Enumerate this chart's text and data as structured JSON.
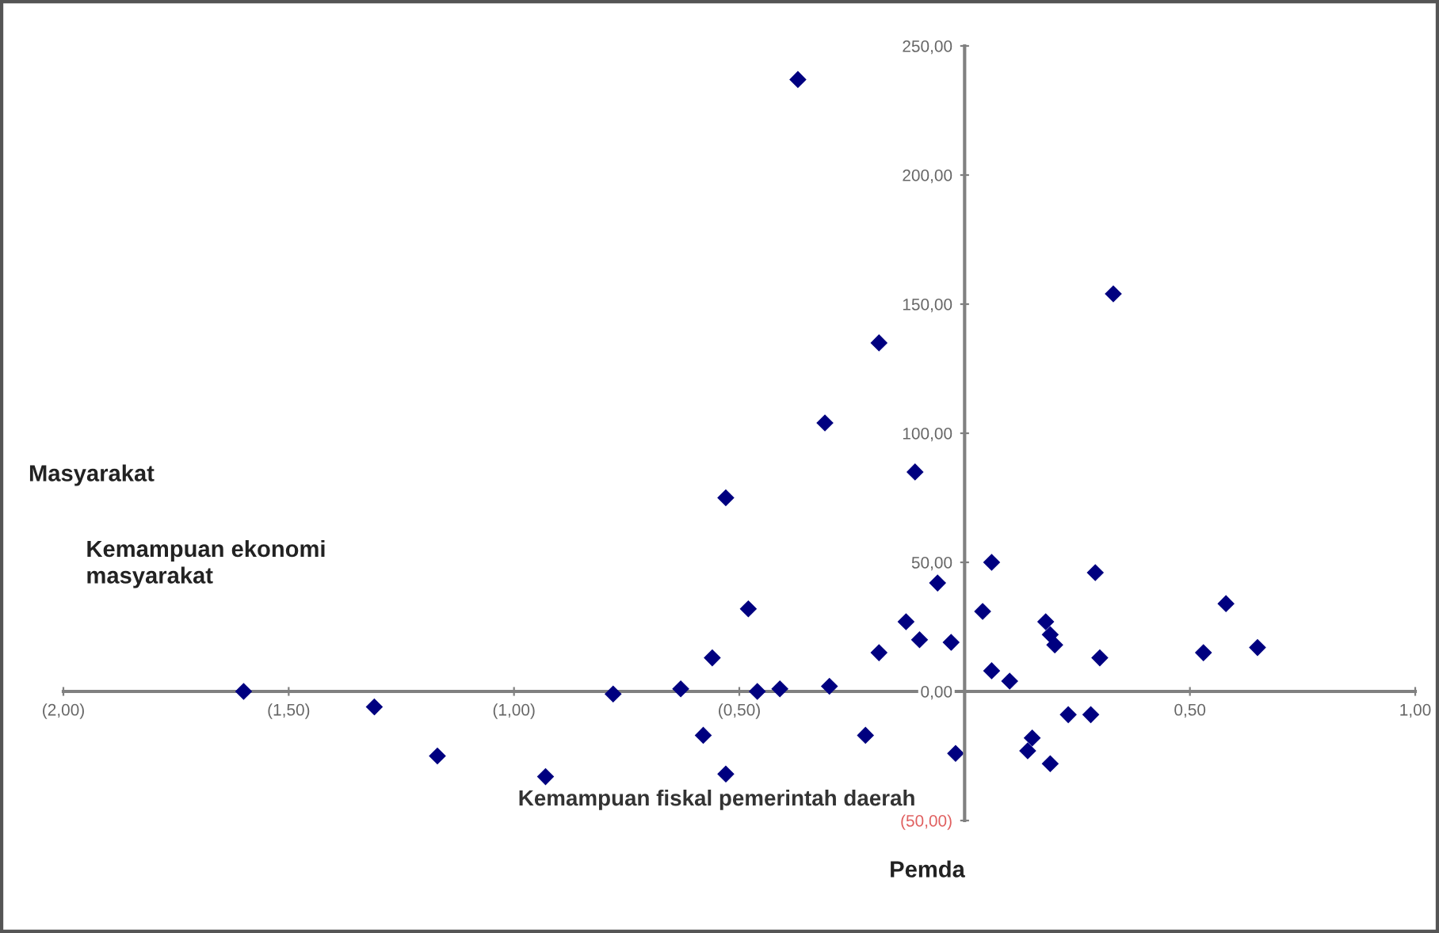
{
  "chart_data": {
    "type": "scatter",
    "xlabel": "Kemampuan fiskal pemerintah daerah",
    "ylabel": "Kemampuan ekonomi\nmasyarakat",
    "annotations": [
      "Masyarakat",
      "Pemda"
    ],
    "marker": "diamond",
    "grid": false,
    "legend": false,
    "xlim": [
      -2,
      1
    ],
    "ylim": [
      -50,
      250
    ],
    "xticks": [
      {
        "value": -2,
        "label": "(2,00)"
      },
      {
        "value": -1.5,
        "label": "(1,50)"
      },
      {
        "value": -1,
        "label": "(1,00)"
      },
      {
        "value": -0.5,
        "label": "(0,50)"
      },
      {
        "value": 0.5,
        "label": "0,50"
      },
      {
        "value": 1,
        "label": "1,00"
      }
    ],
    "yticks": [
      {
        "value": -50,
        "label": "(50,00)"
      },
      {
        "value": 0,
        "label": "0,00"
      },
      {
        "value": 50,
        "label": "50,00"
      },
      {
        "value": 100,
        "label": "100,00"
      },
      {
        "value": 150,
        "label": "150,00"
      },
      {
        "value": 200,
        "label": "200,00"
      },
      {
        "value": 250,
        "label": "250,00"
      }
    ],
    "series": [
      {
        "color": "#000080",
        "x": [
          -0.37,
          0.33,
          -0.19,
          -0.31,
          -0.11,
          -0.53,
          0.06,
          0.29,
          -0.06,
          -0.48,
          0.04,
          0.58,
          -0.13,
          0.18,
          0.19,
          0.2,
          -0.1,
          -0.03,
          -0.19,
          -0.56,
          0.3,
          0.53,
          0.65,
          0.06,
          0.1,
          -1.6,
          -1.31,
          -1.17,
          -0.93,
          -0.78,
          -0.63,
          -0.58,
          -0.53,
          -0.46,
          -0.41,
          -0.3,
          -0.22,
          -0.02,
          0.23,
          0.28,
          0.15,
          0.14,
          0.19
        ],
        "values": [
          237,
          154,
          135,
          104,
          85,
          75,
          50,
          46,
          42,
          32,
          31,
          34,
          27,
          27,
          22,
          18,
          20,
          19,
          15,
          13,
          13,
          15,
          17,
          8,
          4,
          0,
          -6,
          -25,
          -33,
          -1,
          1,
          -17,
          -32,
          0,
          1,
          2,
          -17,
          -24,
          -9,
          -9,
          -18,
          -23,
          -28
        ]
      }
    ]
  }
}
